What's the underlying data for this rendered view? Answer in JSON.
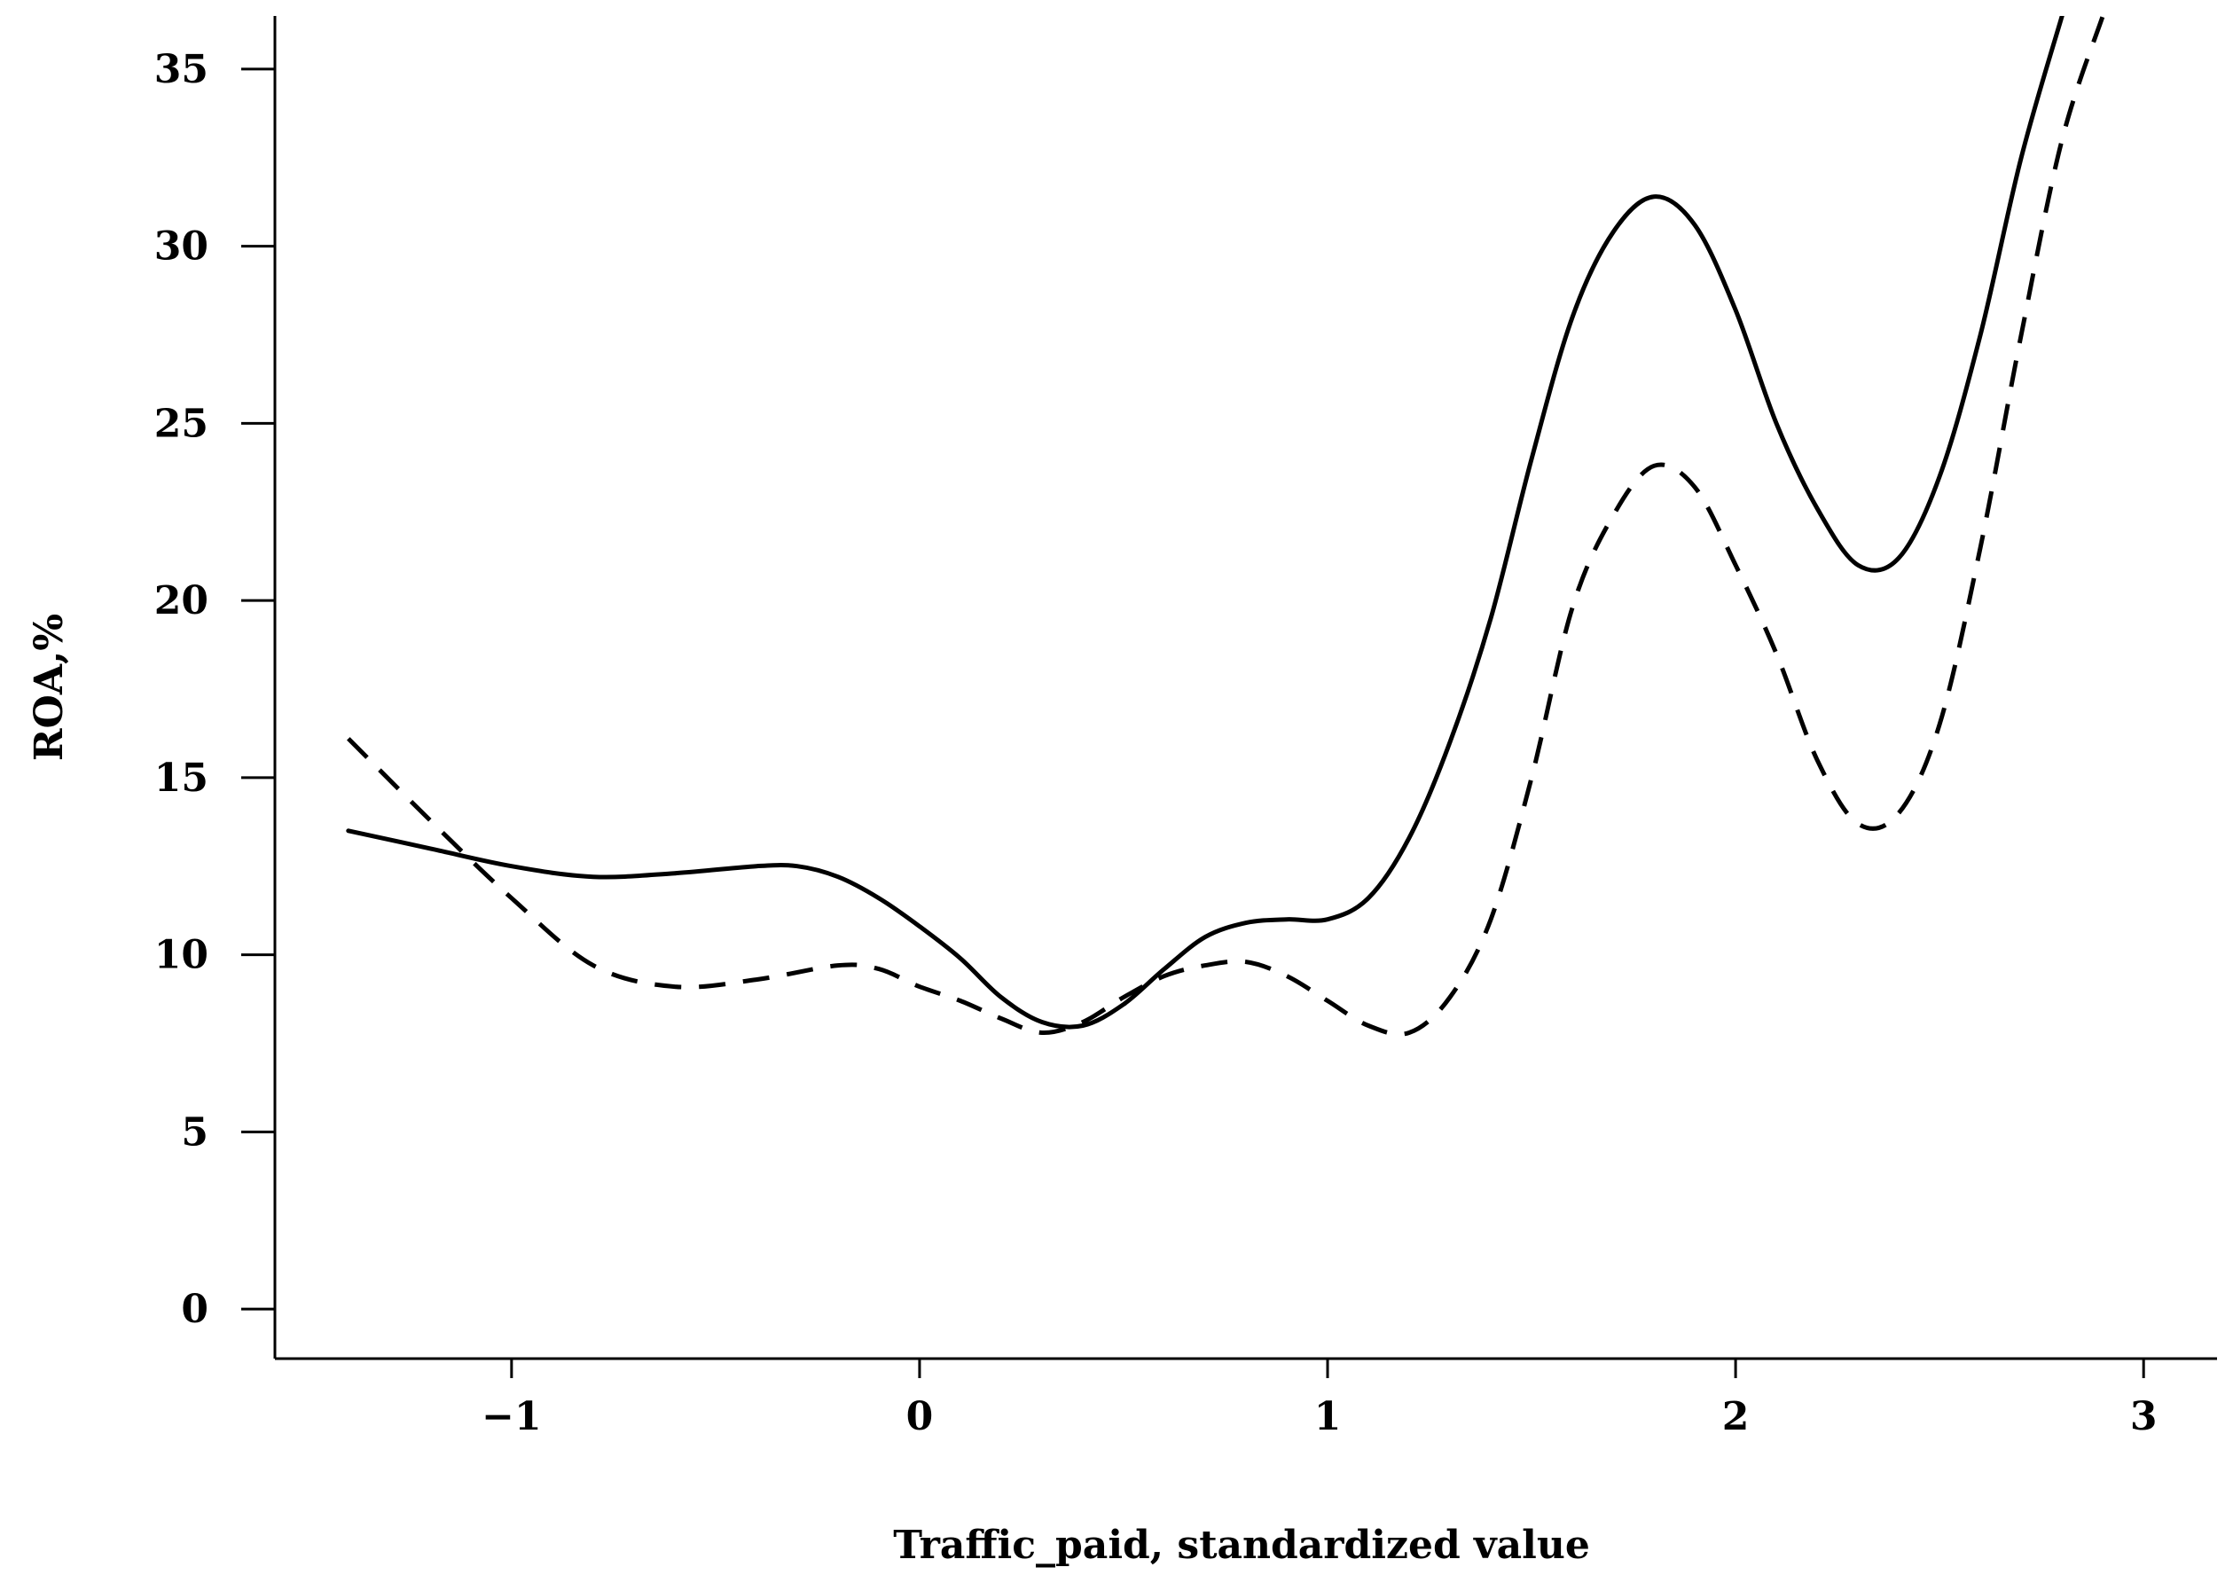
{
  "chart_data": {
    "type": "line",
    "title": "",
    "xlabel": "Traffic_paid, standardized value",
    "ylabel": "ROA,%",
    "xlim": [
      -1.58,
      3.18
    ],
    "ylim": [
      -1.4,
      36.5
    ],
    "x_ticks": [
      -1,
      0,
      1,
      2,
      3
    ],
    "x_tick_labels": [
      "−1",
      "0",
      "1",
      "2",
      "3"
    ],
    "y_ticks": [
      0,
      5,
      10,
      15,
      20,
      25,
      30,
      35
    ],
    "y_tick_labels": [
      "0",
      "5",
      "10",
      "15",
      "20",
      "25",
      "30",
      "35"
    ],
    "grid": false,
    "series": [
      {
        "style": "solid",
        "x": [
          -1.4,
          -1.2,
          -1.0,
          -0.8,
          -0.6,
          -0.4,
          -0.3,
          -0.2,
          -0.1,
          0.0,
          0.1,
          0.2,
          0.3,
          0.4,
          0.5,
          0.6,
          0.7,
          0.8,
          0.9,
          1.0,
          1.1,
          1.2,
          1.3,
          1.4,
          1.5,
          1.6,
          1.7,
          1.8,
          1.9,
          2.0,
          2.1,
          2.2,
          2.3,
          2.4,
          2.5,
          2.6,
          2.7,
          2.8
        ],
        "y": [
          13.5,
          13.0,
          12.5,
          12.2,
          12.3,
          12.5,
          12.5,
          12.2,
          11.6,
          10.8,
          9.9,
          8.8,
          8.1,
          8.0,
          8.6,
          9.6,
          10.5,
          10.9,
          11.0,
          11.0,
          11.6,
          13.3,
          16.0,
          19.5,
          24.0,
          28.0,
          30.4,
          31.4,
          30.6,
          28.2,
          25.0,
          22.6,
          21.0,
          21.2,
          23.5,
          27.5,
          32.5,
          36.5
        ]
      },
      {
        "style": "dashed",
        "x": [
          -1.4,
          -1.2,
          -1.0,
          -0.8,
          -0.6,
          -0.4,
          -0.2,
          -0.1,
          0.0,
          0.1,
          0.2,
          0.3,
          0.4,
          0.5,
          0.6,
          0.7,
          0.8,
          0.9,
          1.0,
          1.1,
          1.2,
          1.3,
          1.4,
          1.5,
          1.6,
          1.7,
          1.8,
          1.9,
          2.0,
          2.1,
          2.2,
          2.3,
          2.4,
          2.5,
          2.6,
          2.7,
          2.8,
          2.9
        ],
        "y": [
          16.1,
          13.8,
          11.6,
          9.7,
          9.1,
          9.3,
          9.7,
          9.6,
          9.1,
          8.7,
          8.2,
          7.8,
          8.1,
          8.8,
          9.4,
          9.7,
          9.8,
          9.4,
          8.7,
          8.0,
          7.8,
          8.8,
          11.0,
          15.0,
          19.8,
          22.4,
          23.8,
          23.2,
          21.0,
          18.5,
          15.5,
          13.7,
          14.0,
          16.5,
          21.5,
          27.5,
          33.0,
          36.5
        ]
      }
    ]
  }
}
